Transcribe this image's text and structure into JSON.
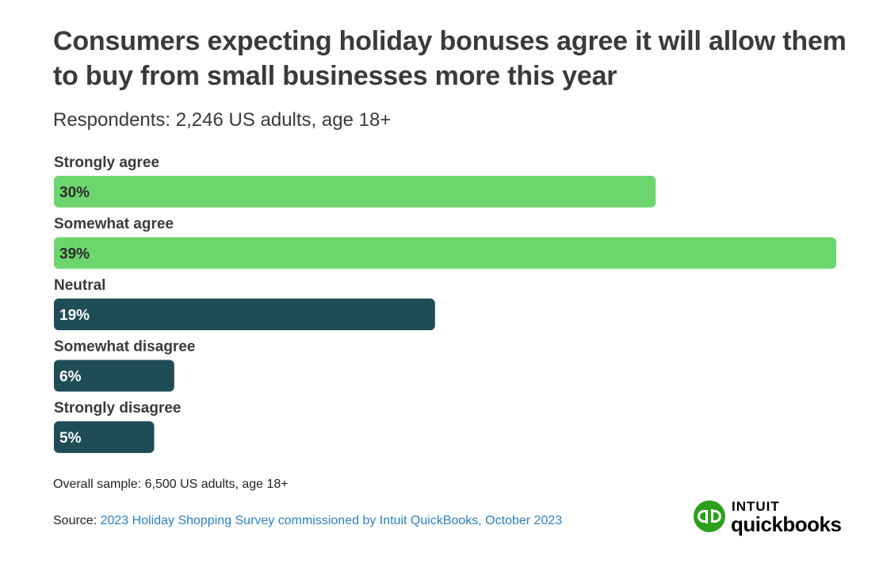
{
  "title": "Consumers expecting holiday bonuses agree it will allow them to buy from small businesses more this year",
  "subtitle": "Respondents: 2,246 US adults, age 18+",
  "footnote": "Overall sample: 6,500 US adults, age 18+",
  "source": {
    "label": "Source:",
    "link_text": "2023 Holiday Shopping Survey commissioned by Intuit QuickBooks, October 2023"
  },
  "logo": {
    "brand": "INTUIT",
    "product": "quickbooks",
    "mark": "qb",
    "color": "#2ca01c"
  },
  "colors": {
    "agree": "#6dd56e",
    "neutral_disagree": "#1f4d56",
    "label_dark": "#2b2b2b",
    "label_light": "#ffffff",
    "link": "#2f7fc1"
  },
  "chart_data": {
    "type": "bar",
    "orientation": "horizontal",
    "categories": [
      "Strongly agree",
      "Somewhat agree",
      "Neutral",
      "Somewhat disagree",
      "Strongly disagree"
    ],
    "values": [
      30,
      39,
      19,
      6,
      5
    ],
    "value_labels": [
      "30%",
      "39%",
      "19%",
      "6%",
      "5%"
    ],
    "unit": "%",
    "xlim": [
      0,
      39
    ],
    "grid": false,
    "legend": "none"
  }
}
